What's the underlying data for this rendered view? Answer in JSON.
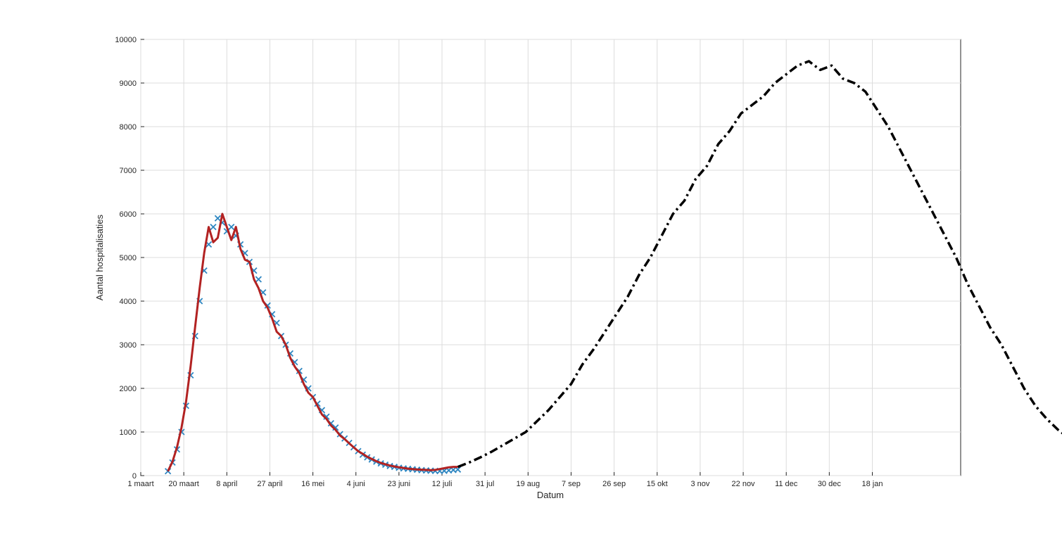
{
  "chart_data": {
    "type": "line",
    "title": "",
    "xlabel": "Datum",
    "ylabel": "Aantal hospitalisaties",
    "ylim": [
      0,
      10000
    ],
    "yticks": [
      0,
      1000,
      2000,
      3000,
      4000,
      5000,
      6000,
      7000,
      8000,
      9000,
      10000
    ],
    "y_tick_labels": [
      "0",
      "1000",
      "2000",
      "3000",
      "4000",
      "5000",
      "6000",
      "7000",
      "8000",
      "9000",
      "10000"
    ],
    "xlim_days": [
      0,
      362
    ],
    "xticks": [
      {
        "day": 0,
        "label": "1 maart"
      },
      {
        "day": 19,
        "label": "20 maart"
      },
      {
        "day": 38,
        "label": "8 april"
      },
      {
        "day": 57,
        "label": "27 april"
      },
      {
        "day": 76,
        "label": "16 mei"
      },
      {
        "day": 95,
        "label": "4 juni"
      },
      {
        "day": 114,
        "label": "23 juni"
      },
      {
        "day": 133,
        "label": "12 juli"
      },
      {
        "day": 152,
        "label": "31 jul"
      },
      {
        "day": 171,
        "label": "19 aug"
      },
      {
        "day": 190,
        "label": "7 sep"
      },
      {
        "day": 209,
        "label": "26 sep"
      },
      {
        "day": 228,
        "label": "15 okt"
      },
      {
        "day": 247,
        "label": "3 nov"
      },
      {
        "day": 266,
        "label": "22 nov"
      },
      {
        "day": 285,
        "label": "11 dec"
      },
      {
        "day": 304,
        "label": "30 dec"
      },
      {
        "day": 323,
        "label": "18 jan"
      }
    ],
    "grid": true,
    "series": [
      {
        "style": "markers-x",
        "color": "#2e86c1",
        "points": [
          [
            12,
            100
          ],
          [
            14,
            300
          ],
          [
            16,
            600
          ],
          [
            18,
            1000
          ],
          [
            20,
            1600
          ],
          [
            22,
            2300
          ],
          [
            24,
            3200
          ],
          [
            26,
            4000
          ],
          [
            28,
            4700
          ],
          [
            30,
            5300
          ],
          [
            32,
            5700
          ],
          [
            34,
            5900
          ],
          [
            36,
            5800
          ],
          [
            38,
            5600
          ],
          [
            40,
            5700
          ],
          [
            42,
            5500
          ],
          [
            44,
            5300
          ],
          [
            46,
            5100
          ],
          [
            48,
            4900
          ],
          [
            50,
            4700
          ],
          [
            52,
            4500
          ],
          [
            54,
            4200
          ],
          [
            56,
            3900
          ],
          [
            58,
            3700
          ],
          [
            60,
            3500
          ],
          [
            62,
            3200
          ],
          [
            64,
            3000
          ],
          [
            66,
            2800
          ],
          [
            68,
            2600
          ],
          [
            70,
            2400
          ],
          [
            72,
            2200
          ],
          [
            74,
            2000
          ],
          [
            76,
            1800
          ],
          [
            78,
            1650
          ],
          [
            80,
            1500
          ],
          [
            82,
            1350
          ],
          [
            84,
            1200
          ],
          [
            86,
            1100
          ],
          [
            88,
            950
          ],
          [
            90,
            850
          ],
          [
            92,
            750
          ],
          [
            94,
            650
          ],
          [
            96,
            560
          ],
          [
            98,
            480
          ],
          [
            100,
            420
          ],
          [
            102,
            370
          ],
          [
            104,
            320
          ],
          [
            106,
            280
          ],
          [
            108,
            250
          ],
          [
            110,
            220
          ],
          [
            112,
            200
          ],
          [
            114,
            180
          ],
          [
            116,
            165
          ],
          [
            118,
            155
          ],
          [
            120,
            145
          ],
          [
            122,
            135
          ],
          [
            124,
            125
          ],
          [
            126,
            118
          ],
          [
            128,
            112
          ],
          [
            130,
            108
          ],
          [
            132,
            105
          ],
          [
            134,
            110
          ],
          [
            136,
            120
          ],
          [
            138,
            130
          ],
          [
            140,
            140
          ]
        ]
      },
      {
        "style": "line",
        "color": "#b22222",
        "points": [
          [
            12,
            100
          ],
          [
            14,
            320
          ],
          [
            16,
            650
          ],
          [
            18,
            1100
          ],
          [
            20,
            1700
          ],
          [
            22,
            2500
          ],
          [
            24,
            3400
          ],
          [
            26,
            4300
          ],
          [
            28,
            5100
          ],
          [
            30,
            5700
          ],
          [
            32,
            5350
          ],
          [
            34,
            5450
          ],
          [
            36,
            6000
          ],
          [
            38,
            5700
          ],
          [
            40,
            5400
          ],
          [
            42,
            5700
          ],
          [
            44,
            5200
          ],
          [
            46,
            4950
          ],
          [
            48,
            4900
          ],
          [
            50,
            4500
          ],
          [
            52,
            4300
          ],
          [
            54,
            4000
          ],
          [
            56,
            3850
          ],
          [
            58,
            3600
          ],
          [
            60,
            3300
          ],
          [
            62,
            3200
          ],
          [
            64,
            3000
          ],
          [
            66,
            2700
          ],
          [
            68,
            2500
          ],
          [
            70,
            2350
          ],
          [
            72,
            2100
          ],
          [
            74,
            1900
          ],
          [
            76,
            1800
          ],
          [
            78,
            1600
          ],
          [
            80,
            1400
          ],
          [
            82,
            1300
          ],
          [
            84,
            1150
          ],
          [
            86,
            1050
          ],
          [
            88,
            920
          ],
          [
            90,
            840
          ],
          [
            92,
            740
          ],
          [
            94,
            650
          ],
          [
            96,
            560
          ],
          [
            98,
            500
          ],
          [
            100,
            430
          ],
          [
            102,
            380
          ],
          [
            104,
            330
          ],
          [
            106,
            290
          ],
          [
            108,
            260
          ],
          [
            110,
            230
          ],
          [
            112,
            210
          ],
          [
            114,
            190
          ],
          [
            116,
            175
          ],
          [
            118,
            160
          ],
          [
            120,
            150
          ],
          [
            122,
            140
          ],
          [
            124,
            135
          ],
          [
            126,
            130
          ],
          [
            128,
            125
          ],
          [
            130,
            130
          ],
          [
            132,
            150
          ],
          [
            134,
            170
          ],
          [
            136,
            190
          ],
          [
            138,
            200
          ],
          [
            140,
            200
          ]
        ]
      },
      {
        "style": "dash-dot",
        "color": "#000000",
        "points": [
          [
            140,
            200
          ],
          [
            145,
            300
          ],
          [
            150,
            420
          ],
          [
            155,
            550
          ],
          [
            160,
            700
          ],
          [
            165,
            850
          ],
          [
            170,
            1000
          ],
          [
            175,
            1250
          ],
          [
            180,
            1500
          ],
          [
            185,
            1800
          ],
          [
            190,
            2100
          ],
          [
            195,
            2550
          ],
          [
            200,
            2900
          ],
          [
            205,
            3300
          ],
          [
            210,
            3700
          ],
          [
            215,
            4100
          ],
          [
            220,
            4600
          ],
          [
            225,
            5000
          ],
          [
            230,
            5500
          ],
          [
            235,
            6000
          ],
          [
            240,
            6300
          ],
          [
            245,
            6800
          ],
          [
            250,
            7100
          ],
          [
            255,
            7600
          ],
          [
            260,
            7900
          ],
          [
            265,
            8300
          ],
          [
            270,
            8500
          ],
          [
            275,
            8700
          ],
          [
            280,
            9000
          ],
          [
            285,
            9200
          ],
          [
            290,
            9400
          ],
          [
            295,
            9500
          ],
          [
            300,
            9300
          ],
          [
            305,
            9400
          ],
          [
            310,
            9100
          ],
          [
            315,
            9000
          ],
          [
            320,
            8800
          ],
          [
            325,
            8400
          ],
          [
            330,
            8000
          ],
          [
            335,
            7500
          ],
          [
            340,
            7000
          ],
          [
            345,
            6500
          ],
          [
            350,
            6000
          ],
          [
            355,
            5500
          ],
          [
            360,
            5000
          ],
          [
            365,
            4400
          ],
          [
            370,
            3900
          ],
          [
            375,
            3400
          ],
          [
            380,
            3000
          ],
          [
            385,
            2500
          ],
          [
            390,
            2000
          ],
          [
            395,
            1600
          ],
          [
            400,
            1300
          ],
          [
            405,
            1050
          ],
          [
            410,
            850
          ],
          [
            415,
            700
          ],
          [
            420,
            550
          ]
        ]
      }
    ]
  }
}
